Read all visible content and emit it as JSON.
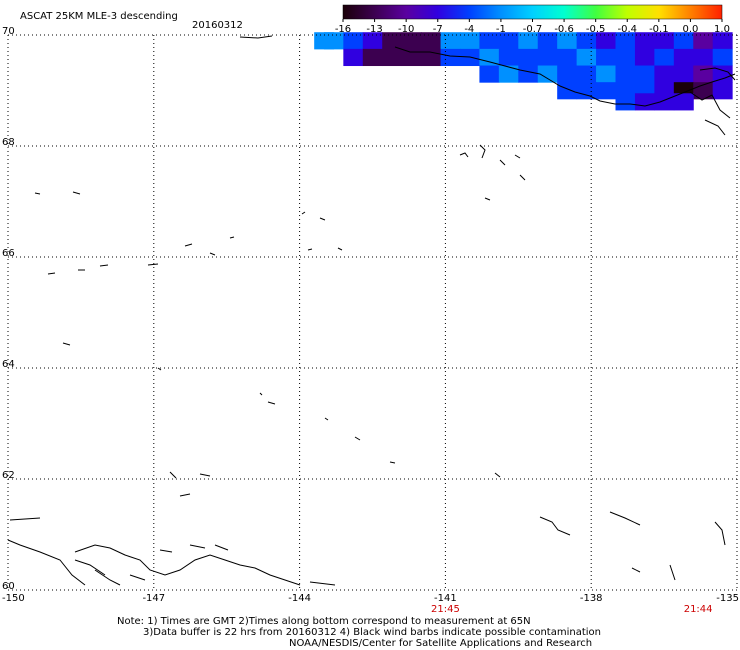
{
  "header": {
    "title": "ASCAT 25KM MLE-3 descending",
    "date": "20160312"
  },
  "colorbar": {
    "labels": [
      "-16",
      "-13",
      "-10",
      "-7",
      "-4",
      "-1",
      "-0.7",
      "-0.6",
      "-0.5",
      "-0.4",
      "-0.1",
      "0.0",
      "1.0"
    ],
    "colors": [
      "#1a0008",
      "#3c0050",
      "#5a00a0",
      "#3000e0",
      "#0040ff",
      "#0090ff",
      "#00d0ff",
      "#00ffd0",
      "#40ff40",
      "#c0ff00",
      "#ffe000",
      "#ff8000",
      "#ff2000"
    ]
  },
  "time_labels": [
    "21:45",
    "21:44"
  ],
  "notes": [
    "Note: 1) Times are GMT 2)Times along bottom correspond to measurement at 65N",
    "3)Data buffer is 22 hrs from 20160312 4) Black wind barbs indicate possible contamination",
    "NOAA/NESDIS/Center for Satellite Applications and Research"
  ],
  "chart_data": {
    "type": "heatmap",
    "title": "ASCAT 25KM MLE-3 descending",
    "date": "20160312",
    "x_ticks": [
      "-150",
      "-147",
      "-144",
      "-141",
      "-138",
      "-135"
    ],
    "y_ticks": [
      "70",
      "68",
      "66",
      "64",
      "62",
      "60"
    ],
    "xlim": [
      -150,
      -135
    ],
    "ylim": [
      60,
      70
    ],
    "grid": true,
    "colorbar_min": -16,
    "colorbar_max": 1.0,
    "time_marks": [
      {
        "lon": -141,
        "label": "21:45"
      },
      {
        "lon": -135.8,
        "label": "21:44"
      }
    ],
    "cells": [
      {
        "lon": -143.5,
        "lat": 69.9,
        "value": -1
      },
      {
        "lon": -143.3,
        "lat": 69.9,
        "value": -1
      },
      {
        "lon": -142.9,
        "lat": 69.9,
        "value": -4
      },
      {
        "lon": -142.5,
        "lat": 69.9,
        "value": -7
      },
      {
        "lon": -142.1,
        "lat": 69.9,
        "value": -13
      },
      {
        "lon": -141.7,
        "lat": 69.9,
        "value": -13
      },
      {
        "lon": -141.3,
        "lat": 69.9,
        "value": -13
      },
      {
        "lon": -140.9,
        "lat": 69.9,
        "value": -1
      },
      {
        "lon": -140.5,
        "lat": 69.9,
        "value": -1
      },
      {
        "lon": -140.1,
        "lat": 69.9,
        "value": -4
      },
      {
        "lon": -139.7,
        "lat": 69.9,
        "value": -4
      },
      {
        "lon": -139.3,
        "lat": 69.9,
        "value": -1
      },
      {
        "lon": -138.9,
        "lat": 69.9,
        "value": -4
      },
      {
        "lon": -138.5,
        "lat": 69.9,
        "value": -1
      },
      {
        "lon": -138.1,
        "lat": 69.9,
        "value": -4
      },
      {
        "lon": -137.7,
        "lat": 69.9,
        "value": -7
      },
      {
        "lon": -137.3,
        "lat": 69.9,
        "value": -4
      },
      {
        "lon": -136.9,
        "lat": 69.9,
        "value": -7
      },
      {
        "lon": -136.5,
        "lat": 69.9,
        "value": -7
      },
      {
        "lon": -136.1,
        "lat": 69.9,
        "value": -4
      },
      {
        "lon": -135.7,
        "lat": 69.9,
        "value": -10
      },
      {
        "lon": -135.3,
        "lat": 69.9,
        "value": -7
      },
      {
        "lon": -142.9,
        "lat": 69.6,
        "value": -7
      },
      {
        "lon": -142.5,
        "lat": 69.6,
        "value": -13
      },
      {
        "lon": -142.1,
        "lat": 69.6,
        "value": -13
      },
      {
        "lon": -141.7,
        "lat": 69.6,
        "value": -13
      },
      {
        "lon": -141.3,
        "lat": 69.6,
        "value": -13
      },
      {
        "lon": -140.9,
        "lat": 69.6,
        "value": -4
      },
      {
        "lon": -140.5,
        "lat": 69.6,
        "value": -4
      },
      {
        "lon": -140.1,
        "lat": 69.6,
        "value": -1
      },
      {
        "lon": -139.7,
        "lat": 69.6,
        "value": -4
      },
      {
        "lon": -139.3,
        "lat": 69.6,
        "value": -4
      },
      {
        "lon": -138.9,
        "lat": 69.6,
        "value": -4
      },
      {
        "lon": -138.5,
        "lat": 69.6,
        "value": -4
      },
      {
        "lon": -138.1,
        "lat": 69.6,
        "value": -1
      },
      {
        "lon": -137.7,
        "lat": 69.6,
        "value": -4
      },
      {
        "lon": -137.3,
        "lat": 69.6,
        "value": -4
      },
      {
        "lon": -136.9,
        "lat": 69.6,
        "value": -7
      },
      {
        "lon": -136.5,
        "lat": 69.6,
        "value": -4
      },
      {
        "lon": -136.1,
        "lat": 69.6,
        "value": -7
      },
      {
        "lon": -135.7,
        "lat": 69.6,
        "value": -7
      },
      {
        "lon": -135.3,
        "lat": 69.6,
        "value": -4
      },
      {
        "lon": -140.1,
        "lat": 69.3,
        "value": -4
      },
      {
        "lon": -139.7,
        "lat": 69.3,
        "value": -1
      },
      {
        "lon": -139.3,
        "lat": 69.3,
        "value": -4
      },
      {
        "lon": -138.9,
        "lat": 69.3,
        "value": -1
      },
      {
        "lon": -138.5,
        "lat": 69.3,
        "value": -4
      },
      {
        "lon": -138.1,
        "lat": 69.3,
        "value": -4
      },
      {
        "lon": -137.7,
        "lat": 69.3,
        "value": -1
      },
      {
        "lon": -137.3,
        "lat": 69.3,
        "value": -4
      },
      {
        "lon": -136.9,
        "lat": 69.3,
        "value": -4
      },
      {
        "lon": -136.5,
        "lat": 69.3,
        "value": -7
      },
      {
        "lon": -136.1,
        "lat": 69.3,
        "value": -7
      },
      {
        "lon": -135.7,
        "lat": 69.3,
        "value": -10
      },
      {
        "lon": -135.3,
        "lat": 69.3,
        "value": -7
      },
      {
        "lon": -138.5,
        "lat": 69.0,
        "value": -4
      },
      {
        "lon": -138.1,
        "lat": 69.0,
        "value": -4
      },
      {
        "lon": -137.7,
        "lat": 69.0,
        "value": -4
      },
      {
        "lon": -137.3,
        "lat": 69.0,
        "value": -4
      },
      {
        "lon": -136.9,
        "lat": 69.0,
        "value": -4
      },
      {
        "lon": -136.5,
        "lat": 69.0,
        "value": -7
      },
      {
        "lon": -136.1,
        "lat": 69.0,
        "value": -16
      },
      {
        "lon": -135.7,
        "lat": 69.0,
        "value": -13
      },
      {
        "lon": -135.3,
        "lat": 69.0,
        "value": -7
      },
      {
        "lon": -137.3,
        "lat": 68.8,
        "value": -4
      },
      {
        "lon": -136.9,
        "lat": 68.8,
        "value": -7
      },
      {
        "lon": -136.5,
        "lat": 68.8,
        "value": -7
      },
      {
        "lon": -136.1,
        "lat": 68.8,
        "value": -7
      }
    ]
  }
}
